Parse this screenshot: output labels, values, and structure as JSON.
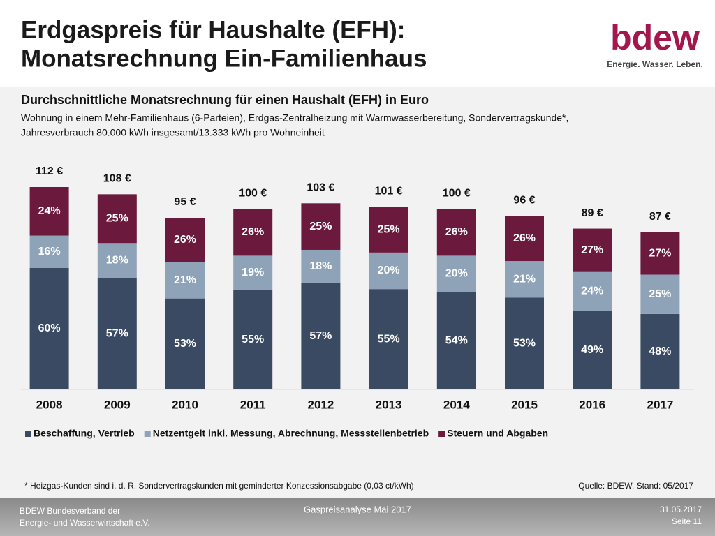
{
  "header": {
    "title": [
      "Erdgaspreis für Haushalte (EFH):",
      "Monatsrechnung Ein-Familienhaus"
    ],
    "logo": "bdew",
    "tagline": "Energie. Wasser. Leben."
  },
  "chart_data": {
    "type": "bar",
    "stacked": true,
    "title": "Durchschnittliche Monatsrechnung für einen Haushalt (EFH) in Euro",
    "subtitle": [
      "Wohnung in einem Mehr-Familienhaus (6-Parteien), Erdgas-Zentralheizung mit Warmwasserbereitung, Sondervertragskunde*,",
      "Jahresverbrauch 80.000 kWh insgesamt/13.333 kWh pro Wohneinheit"
    ],
    "categories": [
      "2008",
      "2009",
      "2010",
      "2011",
      "2012",
      "2013",
      "2014",
      "2015",
      "2016",
      "2017"
    ],
    "totals": {
      "values": [
        112,
        108,
        95,
        100,
        103,
        101,
        100,
        96,
        89,
        87
      ],
      "value_labels": [
        "112 €",
        "108 €",
        "95 €",
        "100 €",
        "103 €",
        "101 €",
        "100 €",
        "96 €",
        "89 €",
        "87 €"
      ]
    },
    "series": [
      {
        "name": "Beschaffung, Vertrieb",
        "color": "#3a4a63",
        "values": [
          60,
          57,
          53,
          55,
          57,
          55,
          54,
          53,
          49,
          48
        ],
        "value_labels": [
          "60%",
          "57%",
          "53%",
          "55%",
          "57%",
          "55%",
          "54%",
          "53%",
          "49%",
          "48%"
        ]
      },
      {
        "name": "Netzentgelt inkl. Messung, Abrechnung, Messstellenbetrieb",
        "color": "#8ea3b8",
        "values": [
          16,
          18,
          21,
          19,
          18,
          20,
          20,
          21,
          24,
          25
        ],
        "value_labels": [
          "16%",
          "18%",
          "21%",
          "19%",
          "18%",
          "20%",
          "20%",
          "21%",
          "24%",
          "25%"
        ]
      },
      {
        "name": "Steuern und Abgaben",
        "color": "#6b1a3d",
        "values": [
          24,
          25,
          26,
          26,
          25,
          25,
          26,
          26,
          27,
          27
        ],
        "value_labels": [
          "24%",
          "25%",
          "26%",
          "26%",
          "25%",
          "25%",
          "26%",
          "26%",
          "27%",
          "27%"
        ]
      }
    ],
    "legend": "bottom"
  },
  "footnote": "* Heizgas-Kunden sind i. d. R. Sondervertragskunden mit geminderter Konzessionsabgabe (0,03 ct/kWh)",
  "source": "Quelle: BDEW, Stand: 05/2017",
  "footer": {
    "left": [
      "BDEW Bundesverband der",
      "Energie- und Wasserwirtschaft e.V."
    ],
    "center": "Gaspreisanalyse Mai 2017",
    "right": [
      "31.05.2017",
      "Seite 11"
    ]
  }
}
